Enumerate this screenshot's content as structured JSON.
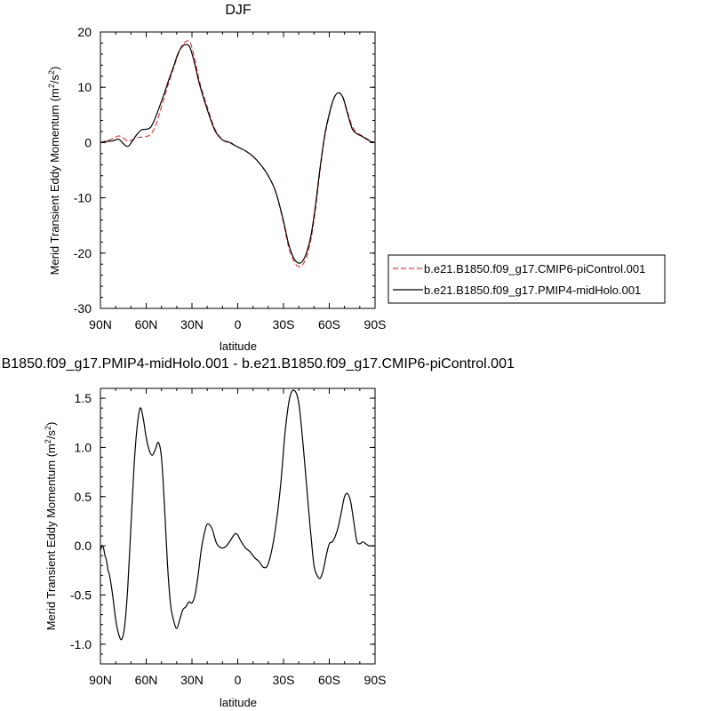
{
  "chart_data": [
    {
      "type": "line",
      "title": "DJF",
      "xlabel": "latitude",
      "ylabel": "Merid Transient Eddy Momentum (m²/s²)",
      "ylabel_parts": {
        "main": "Merid Transient Eddy Momentum (m",
        "sup1": "2",
        "mid": "/s",
        "sup2": "2",
        "end": ")"
      },
      "xlim": [
        90,
        -90
      ],
      "ylim": [
        -30,
        20
      ],
      "x_ticks": [
        90,
        60,
        30,
        0,
        -30,
        -60,
        -90
      ],
      "x_tick_labels": [
        "90N",
        "60N",
        "30N",
        "0",
        "30S",
        "60S",
        "90S"
      ],
      "y_ticks": [
        -30,
        -20,
        -10,
        0,
        10,
        20
      ],
      "y_tick_labels": [
        "-30",
        "-20",
        "-10",
        "0",
        "10",
        "20"
      ],
      "legend": "right-middle",
      "series": [
        {
          "name": "b.e21.B1850.f09_g17.CMIP6-piControl.001",
          "color": "#e8393a",
          "dash": "dashed",
          "x": [
            90,
            86,
            82,
            78,
            75,
            72,
            69,
            66,
            63,
            60,
            57,
            54,
            51,
            48,
            45,
            42,
            39,
            36,
            33,
            31,
            28,
            25,
            20,
            15,
            10,
            5,
            2,
            0,
            -5,
            -10,
            -15,
            -20,
            -25,
            -30,
            -33,
            -36,
            -39,
            -42,
            -45,
            -48,
            -51,
            -54,
            -57,
            -60,
            -63,
            -66,
            -69,
            -72,
            -75,
            -78,
            -81,
            -84,
            -87,
            -90
          ],
          "y": [
            0,
            0.3,
            0.7,
            1.2,
            0.8,
            0.3,
            0.5,
            0.9,
            1.0,
            1.1,
            1.5,
            3.0,
            5.5,
            8.3,
            11.0,
            13.5,
            16.0,
            17.8,
            18.4,
            18.0,
            15.0,
            11.0,
            6.5,
            2.5,
            0.5,
            -0.1,
            -0.5,
            -0.8,
            -1.5,
            -2.5,
            -4.0,
            -6.0,
            -9.0,
            -14.5,
            -18.5,
            -21.0,
            -22.3,
            -22.2,
            -20.8,
            -17.5,
            -12.0,
            -5.0,
            1.0,
            5.0,
            8.0,
            9.0,
            8.2,
            5.5,
            3.0,
            1.8,
            1.3,
            0.8,
            0.3,
            0
          ]
        },
        {
          "name": "b.e21.B1850.f09_g17.PMIP4-midHolo.001",
          "color": "#000000",
          "dash": "solid",
          "x": [
            90,
            86,
            82,
            78,
            75,
            72,
            69,
            66,
            63,
            60,
            57,
            54,
            51,
            48,
            45,
            42,
            39,
            36,
            33,
            31,
            28,
            25,
            20,
            15,
            10,
            5,
            2,
            0,
            -5,
            -10,
            -15,
            -20,
            -25,
            -30,
            -33,
            -36,
            -39,
            -42,
            -45,
            -48,
            -51,
            -54,
            -57,
            -60,
            -63,
            -66,
            -69,
            -72,
            -75,
            -78,
            -81,
            -84,
            -87,
            -90
          ],
          "y": [
            0,
            0.2,
            0.3,
            0.6,
            -0.2,
            -0.7,
            0.3,
            1.5,
            2.3,
            2.4,
            2.8,
            4.5,
            6.7,
            9.0,
            11.5,
            13.8,
            16.2,
            17.5,
            17.7,
            17.0,
            14.0,
            10.5,
            6.0,
            2.2,
            0.5,
            0,
            -0.5,
            -0.8,
            -1.5,
            -2.5,
            -4.0,
            -6.0,
            -9.0,
            -14.2,
            -18.0,
            -20.5,
            -21.7,
            -21.6,
            -20.0,
            -16.8,
            -11.3,
            -4.5,
            1.3,
            5.2,
            8.0,
            9.0,
            8.1,
            5.2,
            2.5,
            1.6,
            1.2,
            0.7,
            0.2,
            0
          ]
        }
      ]
    },
    {
      "type": "line",
      "title": "b.e21.B1850.f09_g17.PMIP4-midHolo.001 - b.e21.B1850.f09_g17.CMIP6-piControl.001",
      "xlabel": "latitude",
      "ylabel": "Merid Transient Eddy Momentum (m²/s²)",
      "ylabel_parts": {
        "main": "Merid Transient Eddy Momentum (m",
        "sup1": "2",
        "mid": "/s",
        "sup2": "2",
        "end": ")"
      },
      "xlim": [
        90,
        -90
      ],
      "ylim": [
        -1.2,
        1.6
      ],
      "x_ticks": [
        90,
        60,
        30,
        0,
        -30,
        -60,
        -90
      ],
      "x_tick_labels": [
        "90N",
        "60N",
        "30N",
        "0",
        "30S",
        "60S",
        "90S"
      ],
      "y_ticks": [
        -1.0,
        -0.5,
        0.0,
        0.5,
        1.0,
        1.5
      ],
      "y_tick_labels": [
        "-1.0",
        "-0.5",
        "0.0",
        "0.5",
        "1.0",
        "1.5"
      ],
      "series": [
        {
          "name": "",
          "color": "#000000",
          "dash": "solid",
          "x": [
            90,
            89,
            88,
            87,
            86,
            85,
            84,
            82,
            80,
            78,
            76,
            74,
            72,
            70,
            68,
            66,
            64,
            62,
            60,
            58,
            56,
            54,
            52,
            50,
            48,
            46,
            44,
            42,
            40,
            38,
            36,
            34,
            32,
            30,
            28,
            26,
            24,
            22,
            20,
            17,
            14,
            11,
            8,
            5,
            2,
            0,
            -2,
            -5,
            -8,
            -11,
            -14,
            -17,
            -20,
            -24,
            -28,
            -31,
            -34,
            -37,
            -40,
            -43,
            -46,
            -48,
            -50,
            -52,
            -54,
            -56,
            -58,
            -60,
            -62,
            -64,
            -66,
            -68,
            -70,
            -72,
            -74,
            -76,
            -78,
            -80,
            -82,
            -84,
            -86,
            -88,
            -89,
            -90
          ],
          "y": [
            -0.05,
            0.0,
            -0.02,
            -0.1,
            -0.15,
            -0.25,
            -0.3,
            -0.5,
            -0.75,
            -0.9,
            -0.95,
            -0.8,
            -0.4,
            0.2,
            0.8,
            1.2,
            1.4,
            1.3,
            1.1,
            0.97,
            0.92,
            0.98,
            1.05,
            0.9,
            0.4,
            -0.2,
            -0.6,
            -0.76,
            -0.84,
            -0.75,
            -0.65,
            -0.62,
            -0.57,
            -0.58,
            -0.5,
            -0.3,
            -0.05,
            0.12,
            0.22,
            0.18,
            0.03,
            -0.02,
            -0.01,
            0.05,
            0.12,
            0.11,
            0.05,
            -0.02,
            -0.06,
            -0.12,
            -0.16,
            -0.22,
            -0.18,
            0.1,
            0.6,
            1.15,
            1.5,
            1.58,
            1.45,
            1.0,
            0.45,
            0.1,
            -0.2,
            -0.3,
            -0.33,
            -0.25,
            -0.1,
            0.02,
            0.04,
            0.1,
            0.2,
            0.35,
            0.5,
            0.53,
            0.45,
            0.25,
            0.05,
            0.02,
            0.04,
            0.02,
            0,
            0,
            0,
            0
          ]
        }
      ]
    }
  ]
}
